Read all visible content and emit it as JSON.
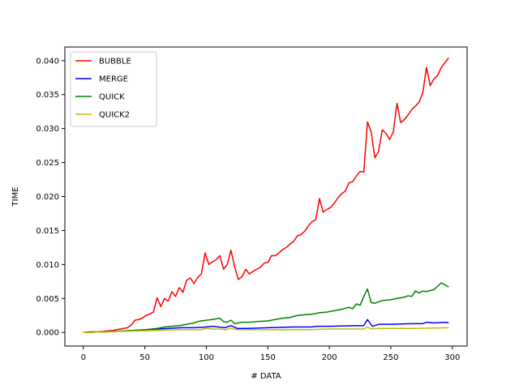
{
  "chart_data": {
    "type": "line",
    "title": "",
    "xlabel": "# DATA",
    "ylabel": "TIME",
    "xlim": [
      -15,
      312
    ],
    "ylim": [
      -0.002,
      0.042
    ],
    "xticks": [
      0,
      50,
      100,
      150,
      200,
      250,
      300
    ],
    "xtick_labels": [
      "0",
      "50",
      "100",
      "150",
      "200",
      "250",
      "300"
    ],
    "yticks": [
      0.0,
      0.005,
      0.01,
      0.015,
      0.02,
      0.025,
      0.03,
      0.035,
      0.04
    ],
    "ytick_labels": [
      "0.000",
      "0.005",
      "0.010",
      "0.015",
      "0.020",
      "0.025",
      "0.030",
      "0.035",
      "0.040"
    ],
    "grid": false,
    "legend_position": "top-left",
    "series": [
      {
        "name": "BUBBLE",
        "color": "#ff0000",
        "x": [
          0,
          6,
          12,
          18,
          24,
          30,
          36,
          39,
          42,
          45,
          48,
          51,
          54,
          57,
          60,
          63,
          66,
          69,
          72,
          75,
          78,
          81,
          84,
          87,
          90,
          93,
          96,
          99,
          102,
          105,
          108,
          111,
          114,
          117,
          120,
          123,
          126,
          129,
          132,
          135,
          138,
          141,
          144,
          147,
          150,
          153,
          156,
          159,
          162,
          165,
          168,
          171,
          174,
          177,
          180,
          183,
          186,
          189,
          192,
          195,
          198,
          201,
          204,
          207,
          210,
          213,
          216,
          219,
          222,
          225,
          228,
          231,
          234,
          237,
          240,
          243,
          246,
          249,
          252,
          255,
          258,
          261,
          264,
          267,
          270,
          273,
          276,
          279,
          282,
          285,
          288,
          291,
          294,
          297
        ],
        "y": [
          0.0,
          0.0001,
          0.0001,
          0.0002,
          0.0003,
          0.0005,
          0.0007,
          0.0011,
          0.0018,
          0.0019,
          0.0021,
          0.0025,
          0.0027,
          0.003,
          0.0051,
          0.0038,
          0.005,
          0.0046,
          0.006,
          0.0053,
          0.0066,
          0.0059,
          0.0077,
          0.008,
          0.0072,
          0.0081,
          0.0086,
          0.0117,
          0.01,
          0.0104,
          0.0107,
          0.0113,
          0.0093,
          0.01,
          0.0121,
          0.0097,
          0.0078,
          0.0082,
          0.0093,
          0.0086,
          0.009,
          0.0093,
          0.0096,
          0.0102,
          0.0103,
          0.0113,
          0.0113,
          0.0117,
          0.0122,
          0.0125,
          0.013,
          0.0134,
          0.0142,
          0.0144,
          0.0149,
          0.0157,
          0.0163,
          0.0166,
          0.0197,
          0.0177,
          0.0181,
          0.0184,
          0.019,
          0.0198,
          0.0204,
          0.0208,
          0.022,
          0.0222,
          0.023,
          0.0237,
          0.0236,
          0.031,
          0.0295,
          0.0257,
          0.0266,
          0.0298,
          0.0293,
          0.0284,
          0.0295,
          0.0337,
          0.0309,
          0.0313,
          0.032,
          0.0328,
          0.0333,
          0.0339,
          0.0353,
          0.039,
          0.0363,
          0.0373,
          0.0378,
          0.039,
          0.0397,
          0.0404
        ]
      },
      {
        "name": "MERGE",
        "color": "#0000ff",
        "x": [
          0,
          20,
          40,
          60,
          70,
          80,
          90,
          100,
          105,
          110,
          115,
          120,
          125,
          135,
          150,
          170,
          185,
          190,
          200,
          220,
          228,
          231,
          235,
          240,
          250,
          270,
          276,
          279,
          285,
          295,
          297
        ],
        "y": [
          0.0,
          0.0001,
          0.0003,
          0.0005,
          0.0006,
          0.0007,
          0.0007,
          0.0008,
          0.0009,
          0.0008,
          0.0007,
          0.001,
          0.0006,
          0.0006,
          0.0007,
          0.0008,
          0.0008,
          0.0009,
          0.0009,
          0.001,
          0.001,
          0.0019,
          0.0009,
          0.0012,
          0.0012,
          0.0013,
          0.0013,
          0.0015,
          0.0014,
          0.0015,
          0.0014
        ]
      },
      {
        "name": "QUICK",
        "color": "#008000",
        "x": [
          0,
          20,
          40,
          50,
          60,
          66,
          72,
          78,
          84,
          90,
          93,
          96,
          100,
          105,
          111,
          114,
          117,
          120,
          123,
          129,
          135,
          141,
          150,
          156,
          162,
          168,
          174,
          180,
          186,
          192,
          198,
          204,
          210,
          216,
          219,
          222,
          225,
          228,
          231,
          234,
          237,
          243,
          249,
          255,
          261,
          264,
          267,
          270,
          273,
          276,
          279,
          285,
          291,
          297
        ],
        "y": [
          0.0,
          0.0001,
          0.0003,
          0.0004,
          0.0006,
          0.0008,
          0.0009,
          0.001,
          0.0012,
          0.0014,
          0.0016,
          0.0017,
          0.0018,
          0.0019,
          0.0021,
          0.0016,
          0.0015,
          0.0018,
          0.0013,
          0.0015,
          0.0015,
          0.0016,
          0.0017,
          0.0019,
          0.0021,
          0.0022,
          0.0025,
          0.0026,
          0.0027,
          0.0029,
          0.003,
          0.0032,
          0.0034,
          0.0037,
          0.0035,
          0.0042,
          0.004,
          0.0053,
          0.0064,
          0.0044,
          0.0043,
          0.0047,
          0.0048,
          0.005,
          0.0052,
          0.0054,
          0.0053,
          0.0061,
          0.0058,
          0.0061,
          0.006,
          0.0063,
          0.0073,
          0.0067
        ]
      },
      {
        "name": "QUICK2",
        "color": "#bfbf00",
        "x": [
          0,
          20,
          40,
          60,
          80,
          95,
          100,
          105,
          110,
          115,
          120,
          125,
          140,
          160,
          180,
          200,
          220,
          228,
          231,
          234,
          240,
          250,
          270,
          297
        ],
        "y": [
          0.0,
          0.0001,
          0.0002,
          0.0003,
          0.0004,
          0.0004,
          0.0006,
          0.0005,
          0.0005,
          0.0004,
          0.0006,
          0.0004,
          0.0004,
          0.0004,
          0.0004,
          0.0005,
          0.0005,
          0.0005,
          0.0008,
          0.0005,
          0.0006,
          0.0006,
          0.0006,
          0.0007
        ]
      }
    ]
  }
}
